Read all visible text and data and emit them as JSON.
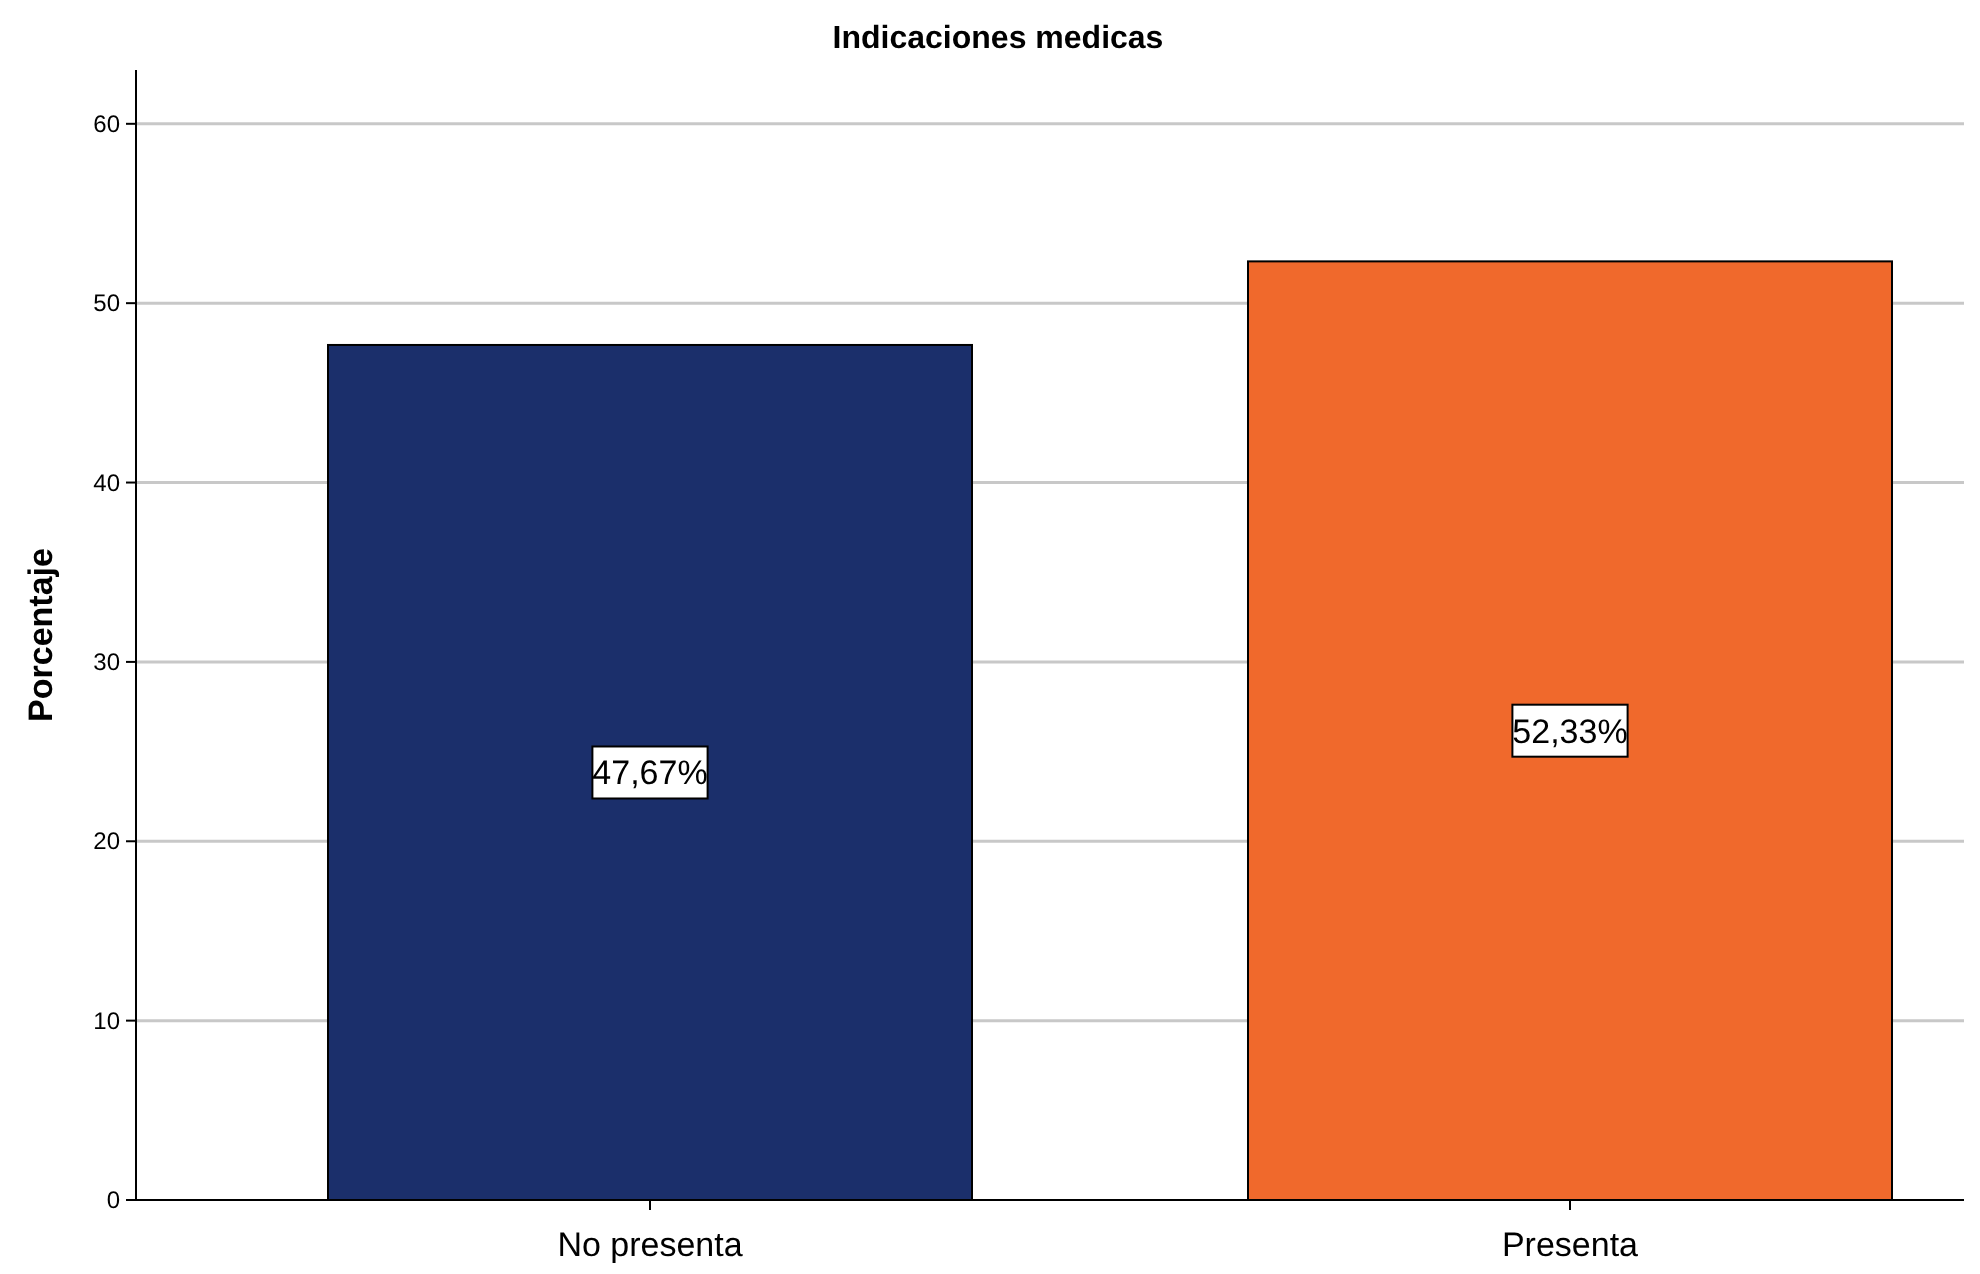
{
  "chart_data": {
    "type": "bar",
    "title": "Indicaciones medicas",
    "ylabel": "Porcentaje",
    "categories": [
      "No presenta",
      "Presenta"
    ],
    "values": [
      47.67,
      52.33
    ],
    "value_labels": [
      "47,67%",
      "52,33%"
    ],
    "colors": [
      "#1b2f6b",
      "#f0692c"
    ],
    "ylim": [
      0,
      63
    ],
    "yticks": [
      0,
      10,
      20,
      30,
      40,
      50,
      60
    ],
    "grid": "y"
  }
}
